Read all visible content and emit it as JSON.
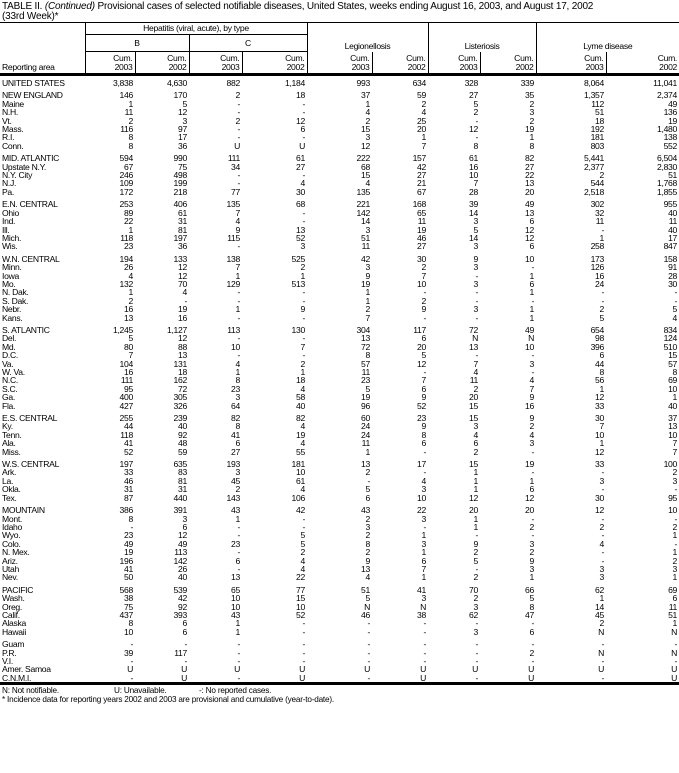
{
  "title": {
    "prefix": "TABLE II. ",
    "italic": "(Continued)",
    "text": " Provisional cases of selected notifiable diseases, United States, weeks ending August 16, 2003, and August 17, 2002",
    "line2": "(33rd Week)*"
  },
  "header": {
    "area_label": "Reporting area",
    "hepatitis": "Hepatitis (viral, acute), by type",
    "b": "B",
    "c": "C",
    "legionellosis": "Legionellosis",
    "listeriosis": "Listeriosis",
    "lyme": "Lyme disease",
    "cum2003": "Cum. 2003",
    "cum2002": "Cum. 2002"
  },
  "rows": [
    [
      "UNITED STATES",
      "3,838",
      "4,630",
      "882",
      "1,184",
      "993",
      "634",
      "328",
      "339",
      "8,064",
      "11,041"
    ],
    [
      "NEW ENGLAND",
      "146",
      "170",
      "2",
      "18",
      "37",
      "59",
      "27",
      "35",
      "1,357",
      "2,374"
    ],
    [
      "Maine",
      "1",
      "5",
      "-",
      "-",
      "1",
      "2",
      "5",
      "2",
      "112",
      "49"
    ],
    [
      "N.H.",
      "11",
      "12",
      "-",
      "-",
      "4",
      "4",
      "2",
      "3",
      "51",
      "136"
    ],
    [
      "Vt.",
      "2",
      "3",
      "2",
      "12",
      "2",
      "25",
      "-",
      "2",
      "18",
      "19"
    ],
    [
      "Mass.",
      "116",
      "97",
      "-",
      "6",
      "15",
      "20",
      "12",
      "19",
      "192",
      "1,480"
    ],
    [
      "R.I.",
      "8",
      "17",
      "-",
      "-",
      "3",
      "1",
      "-",
      "1",
      "181",
      "138"
    ],
    [
      "Conn.",
      "8",
      "36",
      "U",
      "U",
      "12",
      "7",
      "8",
      "8",
      "803",
      "552"
    ],
    [
      "MID. ATLANTIC",
      "594",
      "990",
      "111",
      "61",
      "222",
      "157",
      "61",
      "82",
      "5,441",
      "6,504"
    ],
    [
      "Upstate N.Y.",
      "67",
      "75",
      "34",
      "27",
      "68",
      "42",
      "16",
      "27",
      "2,377",
      "2,830"
    ],
    [
      "N.Y. City",
      "246",
      "498",
      "-",
      "-",
      "15",
      "27",
      "10",
      "22",
      "2",
      "51"
    ],
    [
      "N.J.",
      "109",
      "199",
      "-",
      "4",
      "4",
      "21",
      "7",
      "13",
      "544",
      "1,768"
    ],
    [
      "Pa.",
      "172",
      "218",
      "77",
      "30",
      "135",
      "67",
      "28",
      "20",
      "2,518",
      "1,855"
    ],
    [
      "E.N. CENTRAL",
      "253",
      "406",
      "135",
      "68",
      "221",
      "168",
      "39",
      "49",
      "302",
      "955"
    ],
    [
      "Ohio",
      "89",
      "61",
      "7",
      "-",
      "142",
      "65",
      "14",
      "13",
      "32",
      "40"
    ],
    [
      "Ind.",
      "22",
      "31",
      "4",
      "-",
      "14",
      "11",
      "3",
      "6",
      "11",
      "11"
    ],
    [
      "Ill.",
      "1",
      "81",
      "9",
      "13",
      "3",
      "19",
      "5",
      "12",
      "-",
      "40"
    ],
    [
      "Mich.",
      "118",
      "197",
      "115",
      "52",
      "51",
      "46",
      "14",
      "12",
      "1",
      "17"
    ],
    [
      "Wis.",
      "23",
      "36",
      "-",
      "3",
      "11",
      "27",
      "3",
      "6",
      "258",
      "847"
    ],
    [
      "W.N. CENTRAL",
      "194",
      "133",
      "138",
      "525",
      "42",
      "30",
      "9",
      "10",
      "173",
      "158"
    ],
    [
      "Minn.",
      "26",
      "12",
      "7",
      "2",
      "3",
      "2",
      "3",
      "-",
      "126",
      "91"
    ],
    [
      "Iowa",
      "4",
      "12",
      "1",
      "1",
      "9",
      "7",
      "-",
      "1",
      "16",
      "28"
    ],
    [
      "Mo.",
      "132",
      "70",
      "129",
      "513",
      "19",
      "10",
      "3",
      "6",
      "24",
      "30"
    ],
    [
      "N. Dak.",
      "1",
      "4",
      "-",
      "-",
      "1",
      "-",
      "-",
      "1",
      "-",
      "-"
    ],
    [
      "S. Dak.",
      "2",
      "-",
      "-",
      "-",
      "1",
      "2",
      "-",
      "-",
      "-",
      "-"
    ],
    [
      "Nebr.",
      "16",
      "19",
      "1",
      "9",
      "2",
      "9",
      "3",
      "1",
      "2",
      "5"
    ],
    [
      "Kans.",
      "13",
      "16",
      "-",
      "-",
      "7",
      "-",
      "-",
      "1",
      "5",
      "4"
    ],
    [
      "S. ATLANTIC",
      "1,245",
      "1,127",
      "113",
      "130",
      "304",
      "117",
      "72",
      "49",
      "654",
      "834"
    ],
    [
      "Del.",
      "5",
      "12",
      "-",
      "-",
      "13",
      "6",
      "N",
      "N",
      "98",
      "124"
    ],
    [
      "Md.",
      "80",
      "88",
      "10",
      "7",
      "72",
      "20",
      "13",
      "10",
      "396",
      "510"
    ],
    [
      "D.C.",
      "7",
      "13",
      "-",
      "-",
      "8",
      "5",
      "-",
      "-",
      "6",
      "15"
    ],
    [
      "Va.",
      "104",
      "131",
      "4",
      "2",
      "57",
      "12",
      "7",
      "3",
      "44",
      "57"
    ],
    [
      "W. Va.",
      "16",
      "18",
      "1",
      "1",
      "11",
      "-",
      "4",
      "-",
      "8",
      "8"
    ],
    [
      "N.C.",
      "111",
      "162",
      "8",
      "18",
      "23",
      "7",
      "11",
      "4",
      "56",
      "69"
    ],
    [
      "S.C.",
      "95",
      "72",
      "23",
      "4",
      "5",
      "6",
      "2",
      "7",
      "1",
      "10"
    ],
    [
      "Ga.",
      "400",
      "305",
      "3",
      "58",
      "19",
      "9",
      "20",
      "9",
      "12",
      "1"
    ],
    [
      "Fla.",
      "427",
      "326",
      "64",
      "40",
      "96",
      "52",
      "15",
      "16",
      "33",
      "40"
    ],
    [
      "E.S. CENTRAL",
      "255",
      "239",
      "82",
      "82",
      "60",
      "23",
      "15",
      "9",
      "30",
      "37"
    ],
    [
      "Ky.",
      "44",
      "40",
      "8",
      "4",
      "24",
      "9",
      "3",
      "2",
      "7",
      "13"
    ],
    [
      "Tenn.",
      "118",
      "92",
      "41",
      "19",
      "24",
      "8",
      "4",
      "4",
      "10",
      "10"
    ],
    [
      "Ala.",
      "41",
      "48",
      "6",
      "4",
      "11",
      "6",
      "6",
      "3",
      "1",
      "7"
    ],
    [
      "Miss.",
      "52",
      "59",
      "27",
      "55",
      "1",
      "-",
      "2",
      "-",
      "12",
      "7"
    ],
    [
      "W.S. CENTRAL",
      "197",
      "635",
      "193",
      "181",
      "13",
      "17",
      "15",
      "19",
      "33",
      "100"
    ],
    [
      "Ark.",
      "33",
      "83",
      "3",
      "10",
      "2",
      "-",
      "1",
      "-",
      "-",
      "2"
    ],
    [
      "La.",
      "46",
      "81",
      "45",
      "61",
      "-",
      "4",
      "1",
      "1",
      "3",
      "3"
    ],
    [
      "Okla.",
      "31",
      "31",
      "2",
      "4",
      "5",
      "3",
      "1",
      "6",
      "-",
      "-"
    ],
    [
      "Tex.",
      "87",
      "440",
      "143",
      "106",
      "6",
      "10",
      "12",
      "12",
      "30",
      "95"
    ],
    [
      "MOUNTAIN",
      "386",
      "391",
      "43",
      "42",
      "43",
      "22",
      "20",
      "20",
      "12",
      "10"
    ],
    [
      "Mont.",
      "8",
      "3",
      "1",
      "-",
      "2",
      "3",
      "1",
      "-",
      "-",
      "-"
    ],
    [
      "Idaho",
      "-",
      "6",
      "-",
      "-",
      "3",
      "-",
      "1",
      "2",
      "2",
      "2"
    ],
    [
      "Wyo.",
      "23",
      "12",
      "-",
      "5",
      "2",
      "1",
      "-",
      "-",
      "-",
      "1"
    ],
    [
      "Colo.",
      "49",
      "49",
      "23",
      "5",
      "8",
      "3",
      "9",
      "3",
      "4",
      "-"
    ],
    [
      "N. Mex.",
      "19",
      "113",
      "-",
      "2",
      "2",
      "1",
      "2",
      "2",
      "-",
      "1"
    ],
    [
      "Ariz.",
      "196",
      "142",
      "6",
      "4",
      "9",
      "6",
      "5",
      "9",
      "-",
      "2"
    ],
    [
      "Utah",
      "41",
      "26",
      "-",
      "4",
      "13",
      "7",
      "-",
      "3",
      "3",
      "3"
    ],
    [
      "Nev.",
      "50",
      "40",
      "13",
      "22",
      "4",
      "1",
      "2",
      "1",
      "3",
      "1"
    ],
    [
      "PACIFIC",
      "568",
      "539",
      "65",
      "77",
      "51",
      "41",
      "70",
      "66",
      "62",
      "69"
    ],
    [
      "Wash.",
      "38",
      "42",
      "10",
      "15",
      "5",
      "3",
      "2",
      "5",
      "1",
      "6"
    ],
    [
      "Oreg.",
      "75",
      "92",
      "10",
      "10",
      "N",
      "N",
      "3",
      "8",
      "14",
      "11"
    ],
    [
      "Calif.",
      "437",
      "393",
      "43",
      "52",
      "46",
      "38",
      "62",
      "47",
      "45",
      "51"
    ],
    [
      "Alaska",
      "8",
      "6",
      "1",
      "-",
      "-",
      "-",
      "-",
      "-",
      "2",
      "1"
    ],
    [
      "Hawaii",
      "10",
      "6",
      "1",
      "-",
      "-",
      "-",
      "3",
      "6",
      "N",
      "N"
    ],
    [
      "Guam",
      "-",
      "-",
      "-",
      "-",
      "-",
      "-",
      "-",
      "-",
      "-",
      "-"
    ],
    [
      "P.R.",
      "39",
      "117",
      "-",
      "-",
      "-",
      "-",
      "-",
      "2",
      "N",
      "N"
    ],
    [
      "V.I.",
      "-",
      "-",
      "-",
      "-",
      "-",
      "-",
      "-",
      "-",
      "-",
      "-"
    ],
    [
      "Amer. Samoa",
      "U",
      "U",
      "U",
      "U",
      "U",
      "U",
      "U",
      "U",
      "U",
      "U"
    ],
    [
      "C.N.M.I.",
      "-",
      "U",
      "-",
      "U",
      "-",
      "U",
      "-",
      "U",
      "-",
      "U"
    ]
  ],
  "footnotes": {
    "n": "N: Not notifiable.",
    "u": "U: Unavailable.",
    "dash": "-: No reported cases.",
    "star": "* Incidence data for reporting years 2002 and 2003 are provisional and cumulative (year-to-date)."
  }
}
